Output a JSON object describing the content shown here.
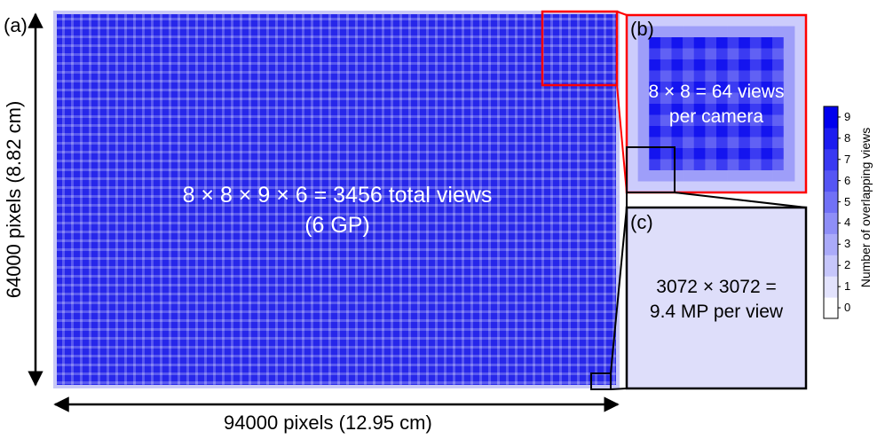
{
  "panel_a": {
    "label": "(a)",
    "text_line1": "8 × 8 × 9 × 6 = 3456 total views",
    "text_line2": "(6 GP)",
    "x_dimension": "94000 pixels (12.95 cm)",
    "y_dimension": "64000 pixels (8.82 cm)"
  },
  "panel_b": {
    "label": "(b)",
    "text_line1": "8 × 8 = 64 views",
    "text_line2": "per camera"
  },
  "panel_c": {
    "label": "(c)",
    "text_line1": "3072 × 3072 =",
    "text_line2": "9.4 MP per view"
  },
  "colorbar": {
    "title": "Number of overlapping views",
    "ticks": [
      "0",
      "1",
      "2",
      "3",
      "4",
      "5",
      "6",
      "7",
      "8",
      "9"
    ]
  },
  "colors": {
    "max": "#0000ee",
    "min": "#ffffff",
    "highlight_red": "#ff0000",
    "outline_black": "#000000"
  }
}
